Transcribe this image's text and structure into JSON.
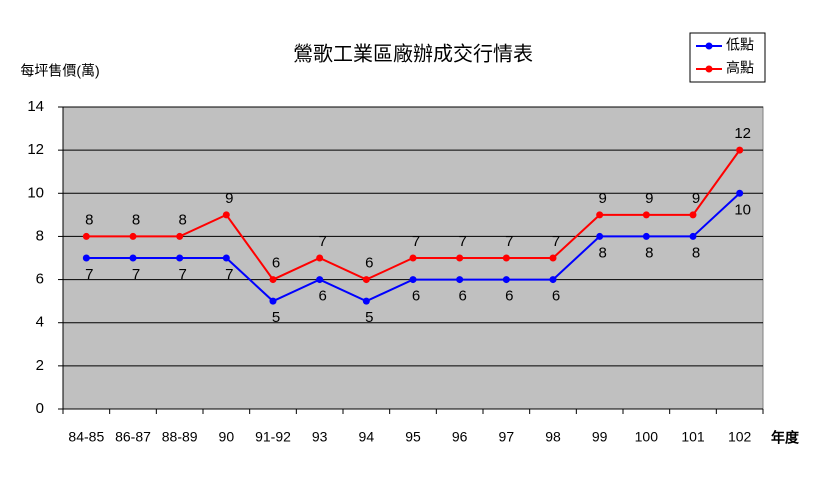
{
  "chart_data": {
    "type": "line",
    "title": "鶯歌工業區廠辦成交行情表",
    "y_label": "每坪售價(萬)",
    "x_label": "年度",
    "categories": [
      "84-85",
      "86-87",
      "88-89",
      "90",
      "91-92",
      "93",
      "94",
      "95",
      "96",
      "97",
      "98",
      "99",
      "100",
      "101",
      "102"
    ],
    "series": [
      {
        "name": "低點",
        "color": "#0000ff",
        "values": [
          7,
          7,
          7,
          7,
          5,
          6,
          5,
          6,
          6,
          6,
          6,
          8,
          8,
          8,
          10
        ]
      },
      {
        "name": "高點",
        "color": "#ff0000",
        "values": [
          8,
          8,
          8,
          9,
          6,
          7,
          6,
          7,
          7,
          7,
          7,
          9,
          9,
          9,
          12
        ]
      }
    ],
    "ylim": [
      0,
      14
    ],
    "yticks": [
      0,
      2,
      4,
      6,
      8,
      10,
      12,
      14
    ],
    "grid": true,
    "legend": "upper right"
  }
}
